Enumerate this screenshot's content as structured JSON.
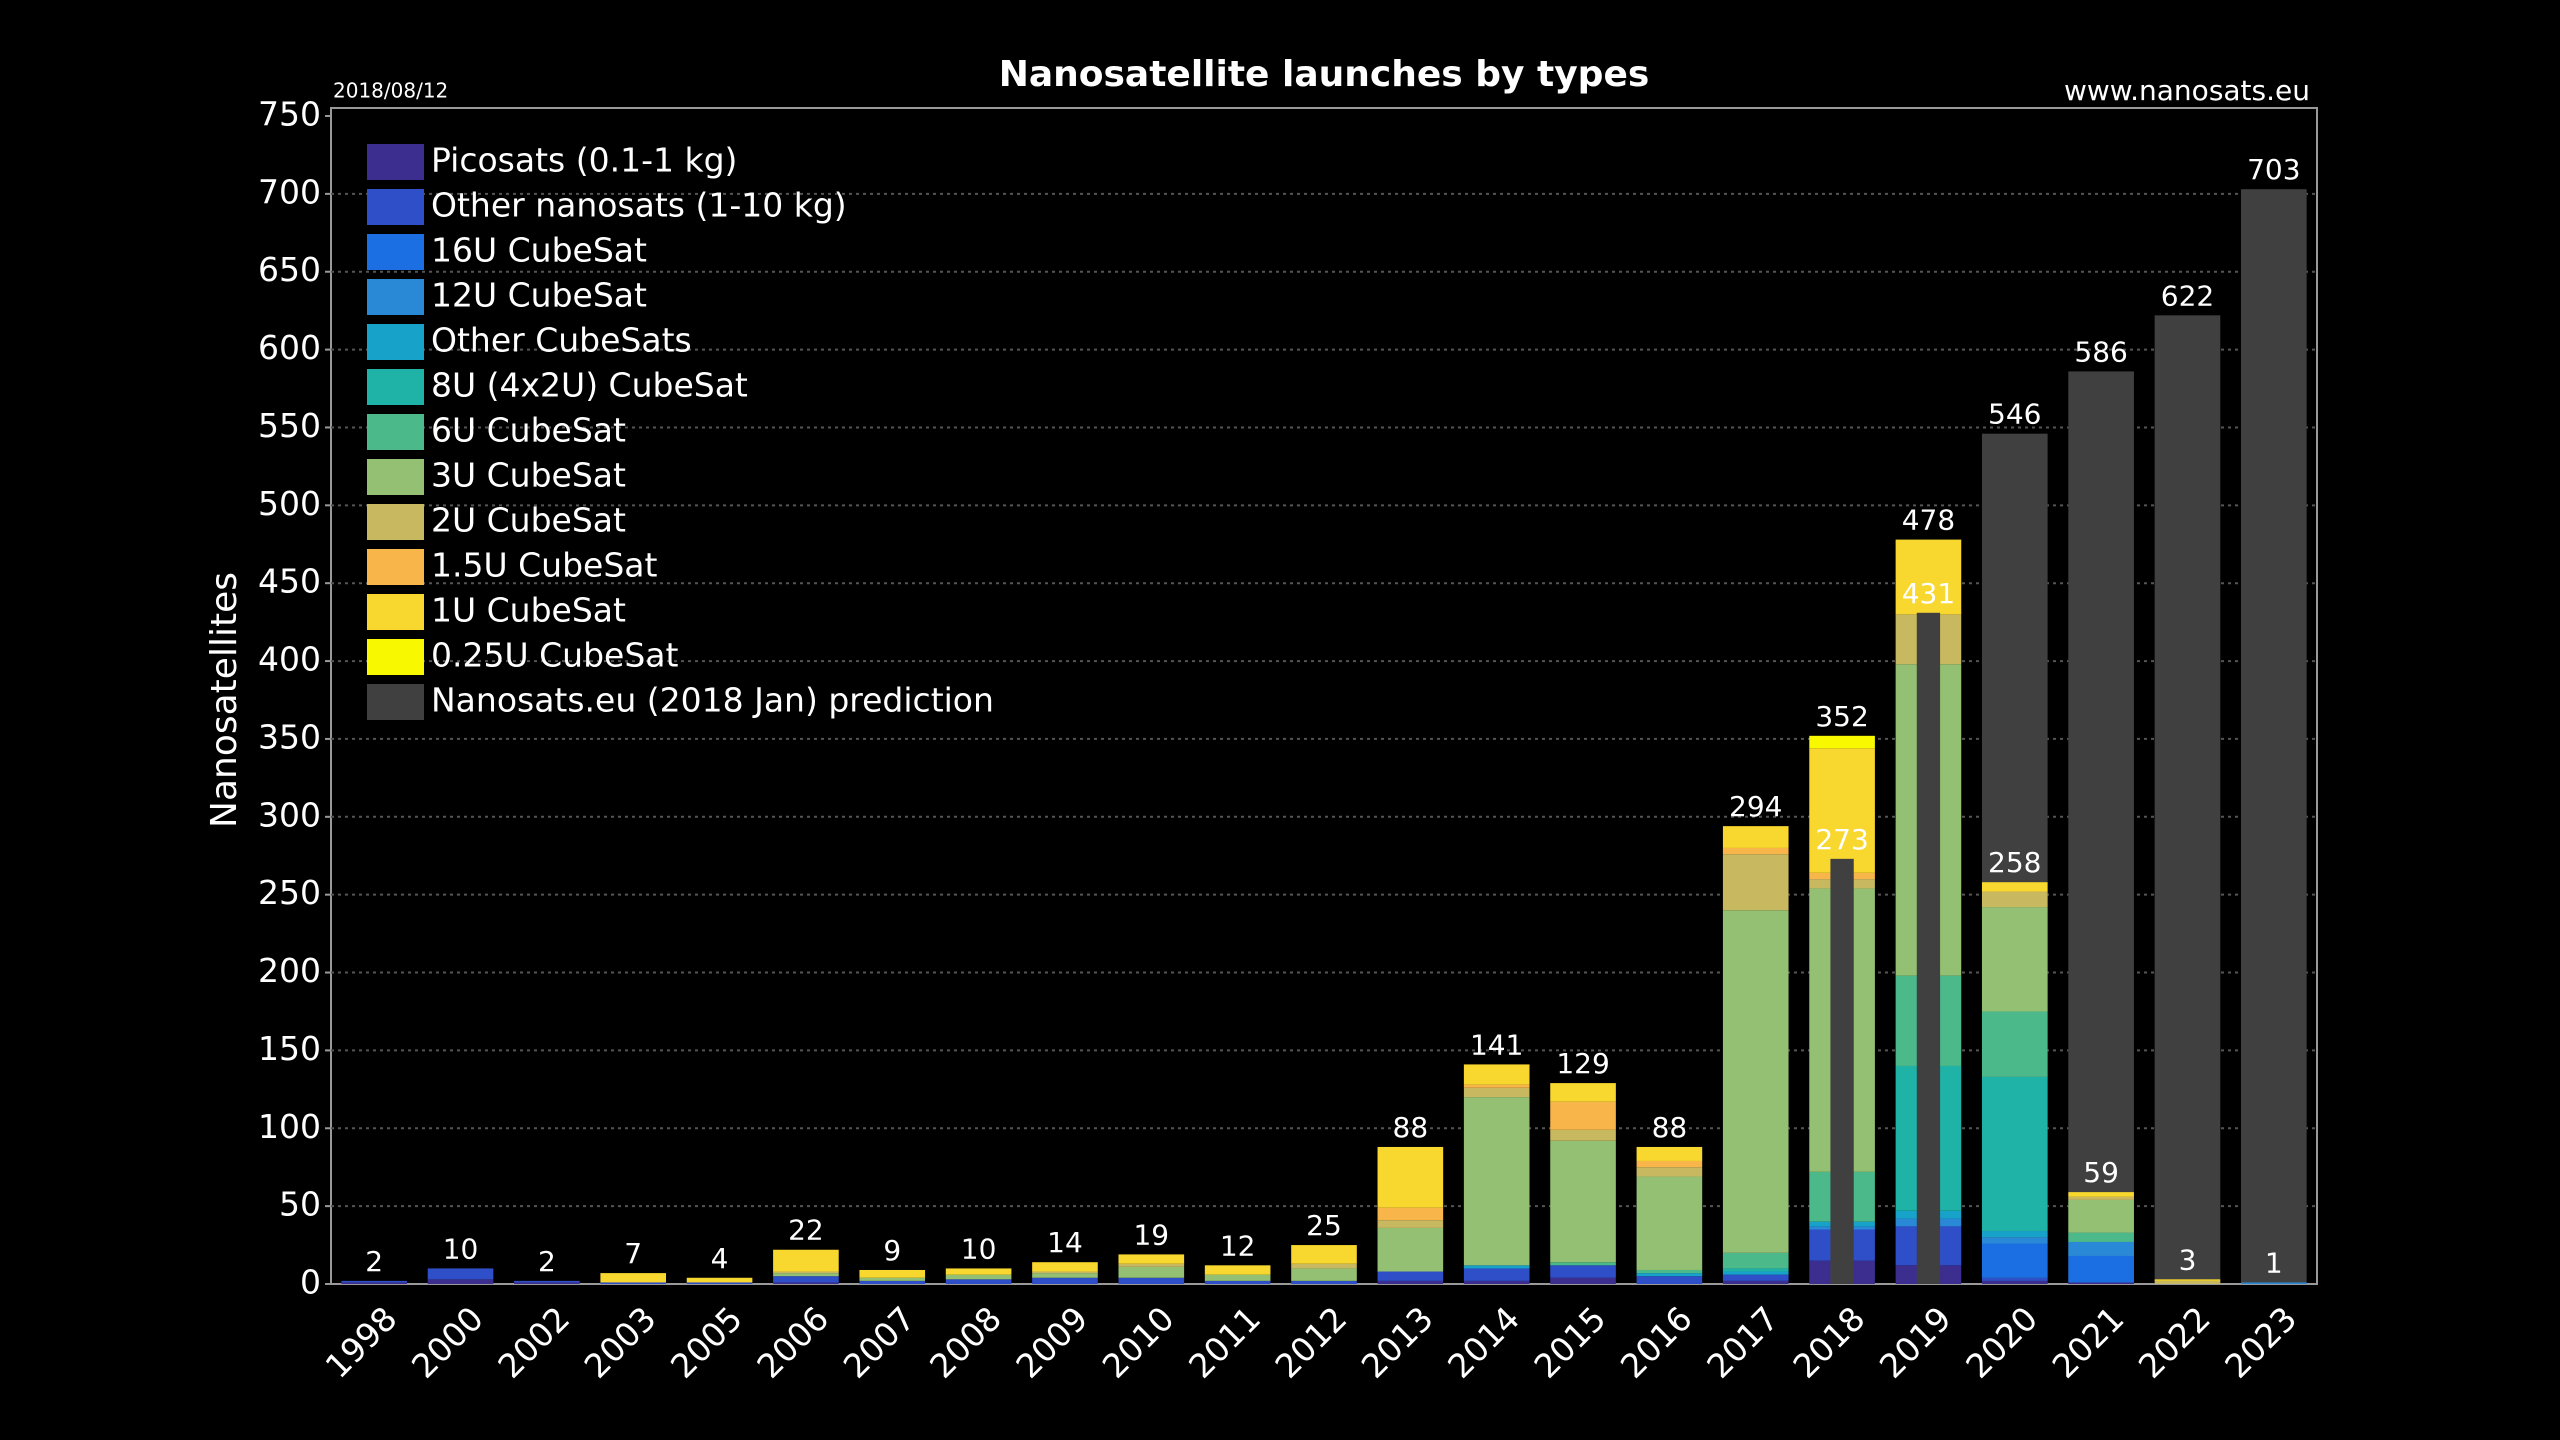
{
  "chart_data": {
    "type": "bar",
    "title": "Nanosatellite launches by types",
    "date": "2018/08/12",
    "source": "www.nanosats.eu",
    "y_label": "Nanosatellites",
    "categories": [
      "1998",
      "2000",
      "2002",
      "2003",
      "2005",
      "2006",
      "2007",
      "2008",
      "2009",
      "2010",
      "2011",
      "2012",
      "2013",
      "2014",
      "2015",
      "2016",
      "2017",
      "2018",
      "2019",
      "2020",
      "2021",
      "2022",
      "2023"
    ],
    "series": [
      {
        "name": "Picosats (0.1-1 kg)",
        "color": "#3b2e8e",
        "values": [
          1,
          3,
          1,
          0,
          0,
          1,
          0,
          0,
          0,
          0,
          0,
          0,
          2,
          2,
          4,
          0,
          2,
          15,
          12,
          2,
          1,
          0,
          0
        ]
      },
      {
        "name": "Other nanosats (1-10 kg)",
        "color": "#2f4fc9",
        "values": [
          1,
          7,
          1,
          1,
          1,
          4,
          2,
          3,
          4,
          4,
          2,
          2,
          6,
          8,
          8,
          5,
          4,
          20,
          25,
          2,
          0,
          0,
          0
        ]
      },
      {
        "name": "16U CubeSat",
        "color": "#1b6fe2",
        "values": [
          0,
          0,
          0,
          0,
          0,
          0,
          0,
          0,
          0,
          0,
          0,
          0,
          0,
          0,
          0,
          0,
          0,
          0,
          0,
          22,
          17,
          0,
          0
        ]
      },
      {
        "name": "12U CubeSat",
        "color": "#2a89d6",
        "values": [
          0,
          0,
          0,
          0,
          0,
          0,
          0,
          0,
          0,
          0,
          0,
          0,
          0,
          0,
          0,
          0,
          0,
          2,
          5,
          4,
          9,
          0,
          1
        ]
      },
      {
        "name": "Other CubeSats",
        "color": "#17a2c9",
        "values": [
          0,
          0,
          0,
          0,
          0,
          0,
          0,
          0,
          0,
          0,
          0,
          0,
          0,
          2,
          0,
          2,
          2,
          3,
          5,
          4,
          0,
          0,
          0
        ]
      },
      {
        "name": "8U (4x2U) CubeSat",
        "color": "#1fb3a8",
        "values": [
          0,
          0,
          0,
          0,
          0,
          0,
          0,
          0,
          0,
          0,
          0,
          0,
          0,
          0,
          0,
          0,
          2,
          0,
          93,
          99,
          0,
          0,
          0
        ]
      },
      {
        "name": "6U CubeSat",
        "color": "#4bb98a",
        "values": [
          0,
          0,
          0,
          0,
          0,
          0,
          0,
          0,
          0,
          0,
          0,
          0,
          0,
          0,
          2,
          2,
          10,
          32,
          58,
          42,
          6,
          0,
          0
        ]
      },
      {
        "name": "3U CubeSat",
        "color": "#93c072",
        "values": [
          0,
          0,
          0,
          0,
          0,
          2,
          2,
          3,
          3,
          7,
          4,
          8,
          28,
          108,
          78,
          60,
          220,
          182,
          200,
          67,
          21,
          0,
          0
        ]
      },
      {
        "name": "2U CubeSat",
        "color": "#c8b85f",
        "values": [
          0,
          0,
          0,
          0,
          0,
          1,
          0,
          0,
          1,
          2,
          0,
          3,
          5,
          6,
          7,
          6,
          36,
          6,
          32,
          10,
          2,
          2,
          0
        ]
      },
      {
        "name": "1.5U CubeSat",
        "color": "#f8b64a",
        "values": [
          0,
          0,
          0,
          0,
          0,
          0,
          0,
          0,
          0,
          0,
          0,
          0,
          8,
          2,
          18,
          4,
          4,
          4,
          0,
          0,
          0,
          0,
          0
        ]
      },
      {
        "name": "1U CubeSat",
        "color": "#f8d72e",
        "values": [
          0,
          0,
          0,
          6,
          3,
          14,
          5,
          4,
          6,
          6,
          6,
          12,
          39,
          13,
          12,
          9,
          14,
          80,
          48,
          6,
          3,
          1,
          0
        ]
      },
      {
        "name": "0.25U CubeSat",
        "color": "#f8f800",
        "values": [
          0,
          0,
          0,
          0,
          0,
          0,
          0,
          0,
          0,
          0,
          0,
          0,
          0,
          0,
          0,
          0,
          0,
          8,
          0,
          0,
          0,
          0,
          0
        ]
      }
    ],
    "prediction": {
      "name": "Nanosats.eu (2018 Jan) prediction",
      "color": "#404040",
      "values": [
        null,
        null,
        null,
        null,
        null,
        null,
        null,
        null,
        null,
        null,
        null,
        null,
        null,
        null,
        null,
        null,
        null,
        273,
        431,
        546,
        586,
        622,
        703
      ]
    },
    "totals": [
      2,
      10,
      2,
      7,
      4,
      22,
      9,
      10,
      14,
      19,
      12,
      25,
      88,
      141,
      129,
      88,
      294,
      352,
      478,
      258,
      59,
      3,
      1
    ],
    "ylim": [
      0,
      750
    ],
    "yticks": [
      0,
      50,
      100,
      150,
      200,
      250,
      300,
      350,
      400,
      450,
      500,
      550,
      600,
      650,
      700,
      750
    ],
    "grid": true
  }
}
